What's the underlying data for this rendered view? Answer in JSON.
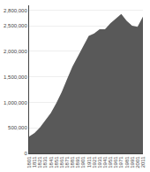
{
  "chart_data": {
    "type": "area",
    "x": [
      1801,
      1811,
      1821,
      1831,
      1841,
      1851,
      1861,
      1871,
      1881,
      1891,
      1901,
      1911,
      1921,
      1931,
      1941,
      1951,
      1961,
      1971,
      1981,
      1991,
      2001,
      2011
    ],
    "values": [
      328000,
      400000,
      510000,
      640000,
      790000,
      980000,
      1200000,
      1455000,
      1700000,
      1900000,
      2100000,
      2300000,
      2350000,
      2430000,
      2430000,
      2550000,
      2640000,
      2730000,
      2595000,
      2500000,
      2480000,
      2680000
    ],
    "color": "#595959",
    "xlim": [
      1801,
      2011
    ],
    "xticks": [
      1801,
      1811,
      1821,
      1831,
      1841,
      1851,
      1861,
      1871,
      1881,
      1891,
      1901,
      1911,
      1921,
      1931,
      1941,
      1951,
      1961,
      1971,
      1981,
      1991,
      2001,
      2011
    ],
    "ylim": [
      0,
      2900000
    ],
    "yticks": [
      0,
      {
        "value": 500000,
        "label": "500,000"
      },
      {
        "value": 1000000,
        "label": "1,000,000"
      },
      {
        "value": 1500000,
        "label": "1,500,000"
      },
      {
        "value": 2000000,
        "label": "2,000,000"
      },
      {
        "value": 2500000,
        "label": "2,500,000"
      },
      {
        "value": 2800000,
        "label": "2,800,000"
      }
    ],
    "grid": true
  }
}
